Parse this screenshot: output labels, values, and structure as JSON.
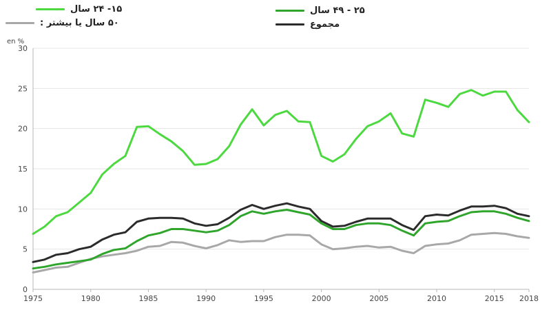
{
  "chart_data": {
    "type": "line",
    "title": "",
    "xlabel": "",
    "ylabel": "en %",
    "ylim": [
      0,
      30
    ],
    "xlim": [
      1975,
      2018
    ],
    "yticks": [
      "0",
      "5",
      "10",
      "15",
      "20",
      "25",
      "30"
    ],
    "xticks": [
      "1975",
      "1980",
      "1985",
      "1990",
      "1995",
      "2000",
      "2005",
      "2010",
      "2015",
      "2018"
    ],
    "grid": true,
    "legend_position": "top",
    "x": [
      1975,
      1976,
      1977,
      1978,
      1979,
      1980,
      1981,
      1982,
      1983,
      1984,
      1985,
      1986,
      1987,
      1988,
      1989,
      1990,
      1991,
      1992,
      1993,
      1994,
      1995,
      1996,
      1997,
      1998,
      1999,
      2000,
      2001,
      2002,
      2003,
      2004,
      2005,
      2006,
      2007,
      2008,
      2009,
      2010,
      2011,
      2012,
      2013,
      2014,
      2015,
      2016,
      2017,
      2018
    ],
    "series": [
      {
        "name": "۱۵- ۲۴ سال",
        "color": "#4cd93f",
        "values": [
          6.9,
          7.8,
          9.1,
          9.6,
          10.8,
          12.0,
          14.3,
          15.6,
          16.6,
          20.2,
          20.3,
          19.3,
          18.4,
          17.2,
          15.5,
          15.6,
          16.2,
          17.8,
          20.5,
          22.4,
          20.4,
          21.7,
          22.2,
          20.9,
          20.8,
          16.6,
          15.9,
          16.8,
          18.7,
          20.3,
          20.9,
          21.9,
          19.4,
          19.0,
          23.6,
          23.2,
          22.7,
          24.3,
          24.8,
          24.1,
          24.6,
          24.6,
          22.3,
          20.8
        ]
      },
      {
        "name": "۲۵ - ۴۹ سال",
        "color": "#2fa52c",
        "values": [
          2.6,
          2.8,
          3.1,
          3.3,
          3.5,
          3.7,
          4.4,
          4.9,
          5.1,
          6.0,
          6.7,
          7.0,
          7.5,
          7.5,
          7.3,
          7.1,
          7.3,
          8.0,
          9.1,
          9.7,
          9.4,
          9.7,
          9.9,
          9.6,
          9.3,
          8.2,
          7.5,
          7.5,
          8.0,
          8.2,
          8.2,
          8.0,
          7.3,
          6.7,
          8.2,
          8.4,
          8.5,
          9.1,
          9.6,
          9.7,
          9.7,
          9.4,
          8.9,
          8.5
        ]
      },
      {
        "name": "۵۰ سال یا بیشتر :",
        "color": "#a8a8a8",
        "values": [
          2.1,
          2.4,
          2.7,
          2.8,
          3.3,
          3.8,
          4.1,
          4.3,
          4.5,
          4.8,
          5.3,
          5.4,
          5.9,
          5.8,
          5.4,
          5.1,
          5.5,
          6.1,
          5.9,
          6.0,
          6.0,
          6.5,
          6.8,
          6.8,
          6.7,
          5.6,
          5.0,
          5.1,
          5.3,
          5.4,
          5.2,
          5.3,
          4.8,
          4.5,
          5.4,
          5.6,
          5.7,
          6.1,
          6.8,
          6.9,
          7.0,
          6.9,
          6.6,
          6.4
        ]
      },
      {
        "name": "مجموع",
        "color": "#2b2b2b",
        "values": [
          3.4,
          3.7,
          4.3,
          4.5,
          5.0,
          5.3,
          6.2,
          6.8,
          7.1,
          8.4,
          8.8,
          8.9,
          8.9,
          8.8,
          8.2,
          7.9,
          8.1,
          8.9,
          9.9,
          10.5,
          10.0,
          10.4,
          10.7,
          10.3,
          10.0,
          8.5,
          7.8,
          7.9,
          8.4,
          8.8,
          8.8,
          8.8,
          8.0,
          7.4,
          9.1,
          9.3,
          9.2,
          9.8,
          10.3,
          10.3,
          10.4,
          10.1,
          9.4,
          9.1
        ]
      }
    ]
  }
}
